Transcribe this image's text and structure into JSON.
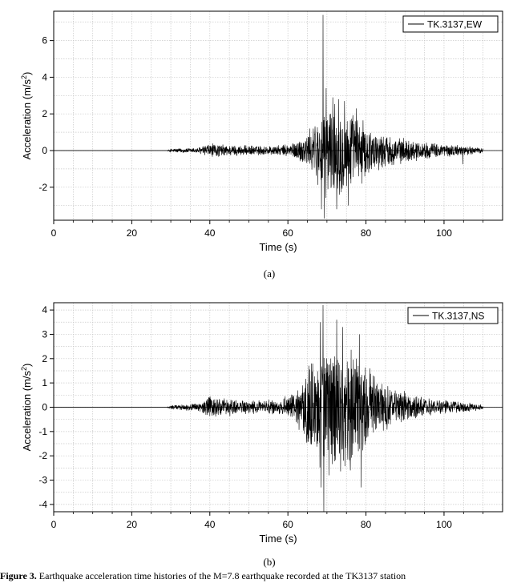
{
  "chart_data": [
    {
      "type": "line",
      "panel_label": "(a)",
      "xlabel": "Time (s)",
      "ylabel": "Acceleration (m/s",
      "ylabel_sup": "2",
      "ylabel_end": ")",
      "xlim": [
        0,
        115
      ],
      "ylim": [
        -3.8,
        7.6
      ],
      "xticks": [
        0,
        20,
        40,
        60,
        80,
        100
      ],
      "yticks": [
        -2,
        0,
        2,
        4,
        6
      ],
      "grid": true,
      "legend_placement": "top-right",
      "series": [
        {
          "name": "TK.3137,EW",
          "color": "#000000",
          "envelope": [
            {
              "t": 0,
              "a": 0
            },
            {
              "t": 29,
              "a": 0
            },
            {
              "t": 30,
              "a": 0.12
            },
            {
              "t": 37,
              "a": 0.18
            },
            {
              "t": 40,
              "a": 0.45
            },
            {
              "t": 44,
              "a": 0.35
            },
            {
              "t": 50,
              "a": 0.3
            },
            {
              "t": 58,
              "a": 0.3
            },
            {
              "t": 62,
              "a": 0.55
            },
            {
              "t": 66,
              "a": 1.3
            },
            {
              "t": 68,
              "a": 2.2
            },
            {
              "t": 70,
              "a": 2.8
            },
            {
              "t": 74,
              "a": 2.6
            },
            {
              "t": 78,
              "a": 2.0
            },
            {
              "t": 82,
              "a": 1.2
            },
            {
              "t": 88,
              "a": 0.8
            },
            {
              "t": 95,
              "a": 0.5
            },
            {
              "t": 105,
              "a": 0.3
            },
            {
              "t": 110,
              "a": 0.15
            }
          ],
          "peaks": [
            {
              "t": 69.0,
              "v": 7.4
            },
            {
              "t": 69.3,
              "v": -3.7
            },
            {
              "t": 68.6,
              "v": -3.2
            },
            {
              "t": 69.8,
              "v": 3.4
            },
            {
              "t": 71.5,
              "v": 2.9
            },
            {
              "t": 73.0,
              "v": 2.8
            },
            {
              "t": 74.5,
              "v": 2.7
            },
            {
              "t": 72.5,
              "v": -3.2
            },
            {
              "t": 75.5,
              "v": -3.0
            },
            {
              "t": 77.5,
              "v": 2.3
            },
            {
              "t": 79.0,
              "v": -1.8
            },
            {
              "t": 66.5,
              "v": 1.2
            },
            {
              "t": 104.8,
              "v": -0.75
            }
          ]
        }
      ]
    },
    {
      "type": "line",
      "panel_label": "(b)",
      "xlabel": "Time (s)",
      "ylabel": "Acceleration (m/s",
      "ylabel_sup": "2",
      "ylabel_end": ")",
      "xlim": [
        0,
        115
      ],
      "ylim": [
        -4.3,
        4.3
      ],
      "xticks": [
        0,
        20,
        40,
        60,
        80,
        100
      ],
      "yticks": [
        -4,
        -3,
        -2,
        -1,
        0,
        1,
        2,
        3,
        4
      ],
      "grid": true,
      "legend_placement": "top-right",
      "series": [
        {
          "name": "TK.3137,NS",
          "color": "#000000",
          "envelope": [
            {
              "t": 0,
              "a": 0
            },
            {
              "t": 29,
              "a": 0
            },
            {
              "t": 30,
              "a": 0.1
            },
            {
              "t": 37,
              "a": 0.2
            },
            {
              "t": 40,
              "a": 0.55
            },
            {
              "t": 44,
              "a": 0.4
            },
            {
              "t": 50,
              "a": 0.3
            },
            {
              "t": 58,
              "a": 0.35
            },
            {
              "t": 62,
              "a": 0.7
            },
            {
              "t": 65,
              "a": 1.6
            },
            {
              "t": 68,
              "a": 2.6
            },
            {
              "t": 70,
              "a": 3.0
            },
            {
              "t": 74,
              "a": 2.8
            },
            {
              "t": 78,
              "a": 2.4
            },
            {
              "t": 82,
              "a": 1.4
            },
            {
              "t": 88,
              "a": 0.8
            },
            {
              "t": 95,
              "a": 0.4
            },
            {
              "t": 105,
              "a": 0.25
            },
            {
              "t": 110,
              "a": 0.12
            }
          ],
          "peaks": [
            {
              "t": 69.0,
              "v": 4.2
            },
            {
              "t": 69.2,
              "v": -4.3
            },
            {
              "t": 68.5,
              "v": -3.3
            },
            {
              "t": 68.3,
              "v": 3.5
            },
            {
              "t": 72.5,
              "v": 3.6
            },
            {
              "t": 74.0,
              "v": 3.3
            },
            {
              "t": 70.5,
              "v": -2.8
            },
            {
              "t": 78.8,
              "v": -3.3
            },
            {
              "t": 78.3,
              "v": 3.0
            },
            {
              "t": 76.0,
              "v": -2.6
            },
            {
              "t": 66.0,
              "v": 1.8
            },
            {
              "t": 81.0,
              "v": 1.6
            }
          ]
        }
      ]
    }
  ],
  "caption": {
    "bold": "Figure 3.",
    "text": " Earthquake acceleration time histories of the M=7.8 earthquake recorded at the TK3137 station"
  }
}
